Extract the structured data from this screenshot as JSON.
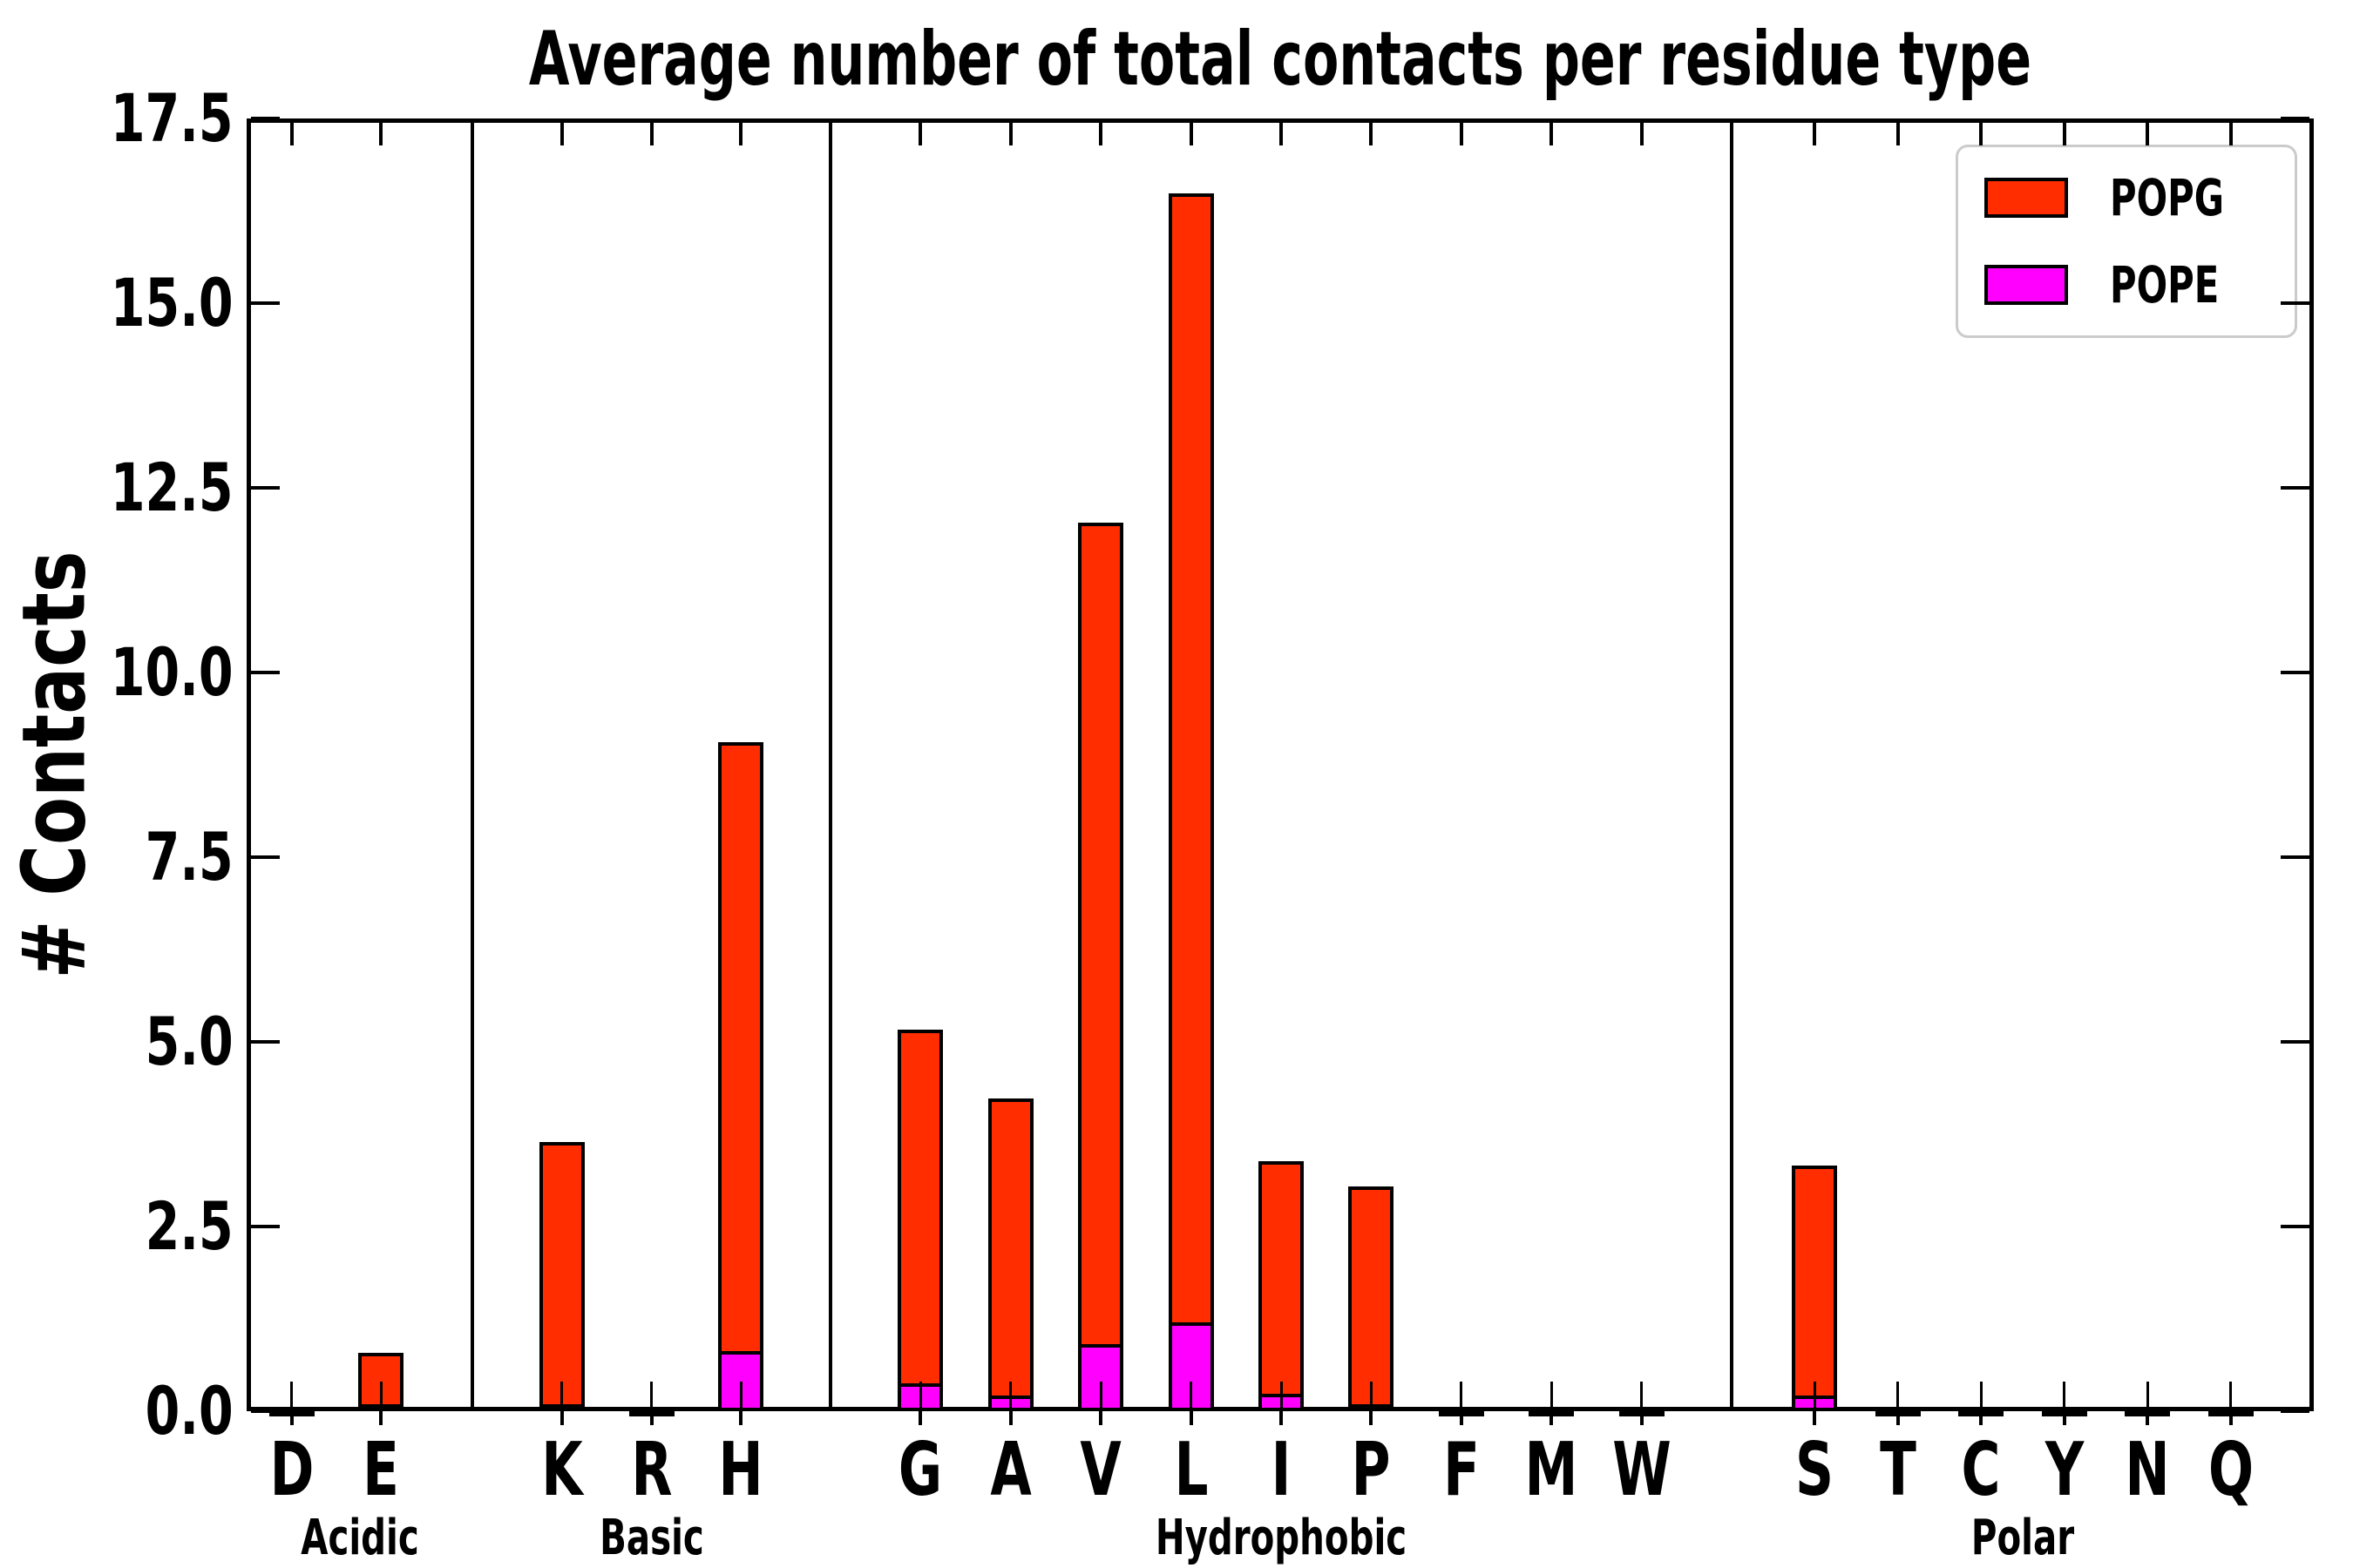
{
  "chart_data": {
    "type": "bar",
    "stacked": true,
    "title": "Average number of total contacts per residue type",
    "ylabel": "# Contacts",
    "xlabel": "",
    "ylim": [
      0,
      17.5
    ],
    "yticks": [
      0,
      2.5,
      5,
      7.5,
      10,
      12.5,
      15,
      17.5
    ],
    "ytick_labels": [
      "0.0",
      "2.5",
      "5.0",
      "7.5",
      "10.0",
      "12.5",
      "15.0",
      "17.5"
    ],
    "grid": false,
    "legend_position": "upper right",
    "bar_edge_color": "#000000",
    "stack_order_bottom_to_top": [
      "POPE",
      "POPG"
    ],
    "series": [
      {
        "name": "POPG",
        "color": "#ff2d00"
      },
      {
        "name": "POPE",
        "color": "#ff00ff"
      }
    ],
    "error_bar_height": 0.4,
    "groups": [
      {
        "label": "Acidic",
        "categories": [
          "D",
          "E"
        ],
        "POPE": [
          0.01,
          0.04
        ],
        "POPG": [
          0.01,
          0.75
        ],
        "error_top": [
          0.4,
          0.4
        ]
      },
      {
        "label": "Basic",
        "categories": [
          "K",
          "R",
          "H"
        ],
        "POPE": [
          0.03,
          0.01,
          0.78
        ],
        "POPG": [
          3.61,
          0.01,
          8.28
        ],
        "error_top": [
          0.4,
          0.4,
          0.4
        ]
      },
      {
        "label": "Hydrophobic",
        "categories": [
          "G",
          "A",
          "V",
          "L",
          "I",
          "P",
          "F",
          "M",
          "W"
        ],
        "POPE": [
          0.34,
          0.17,
          0.87,
          1.16,
          0.2,
          0.03,
          0.01,
          0.01,
          0.01
        ],
        "POPG": [
          4.83,
          4.06,
          11.16,
          15.33,
          3.19,
          3.01,
          0.01,
          0.01,
          0.01
        ],
        "error_top": [
          0.4,
          0.4,
          0.4,
          0.4,
          0.4,
          0.4,
          0.4,
          0.4,
          0.4
        ]
      },
      {
        "label": "Polar",
        "categories": [
          "S",
          "T",
          "C",
          "Y",
          "N",
          "Q"
        ],
        "POPE": [
          0.17,
          0.01,
          0.01,
          0.01,
          0.01,
          0.01
        ],
        "POPG": [
          3.15,
          0.01,
          0.01,
          0.01,
          0.01,
          0.01
        ],
        "error_top": [
          0.4,
          0.4,
          0.4,
          0.4,
          0.4,
          0.4
        ]
      }
    ]
  }
}
